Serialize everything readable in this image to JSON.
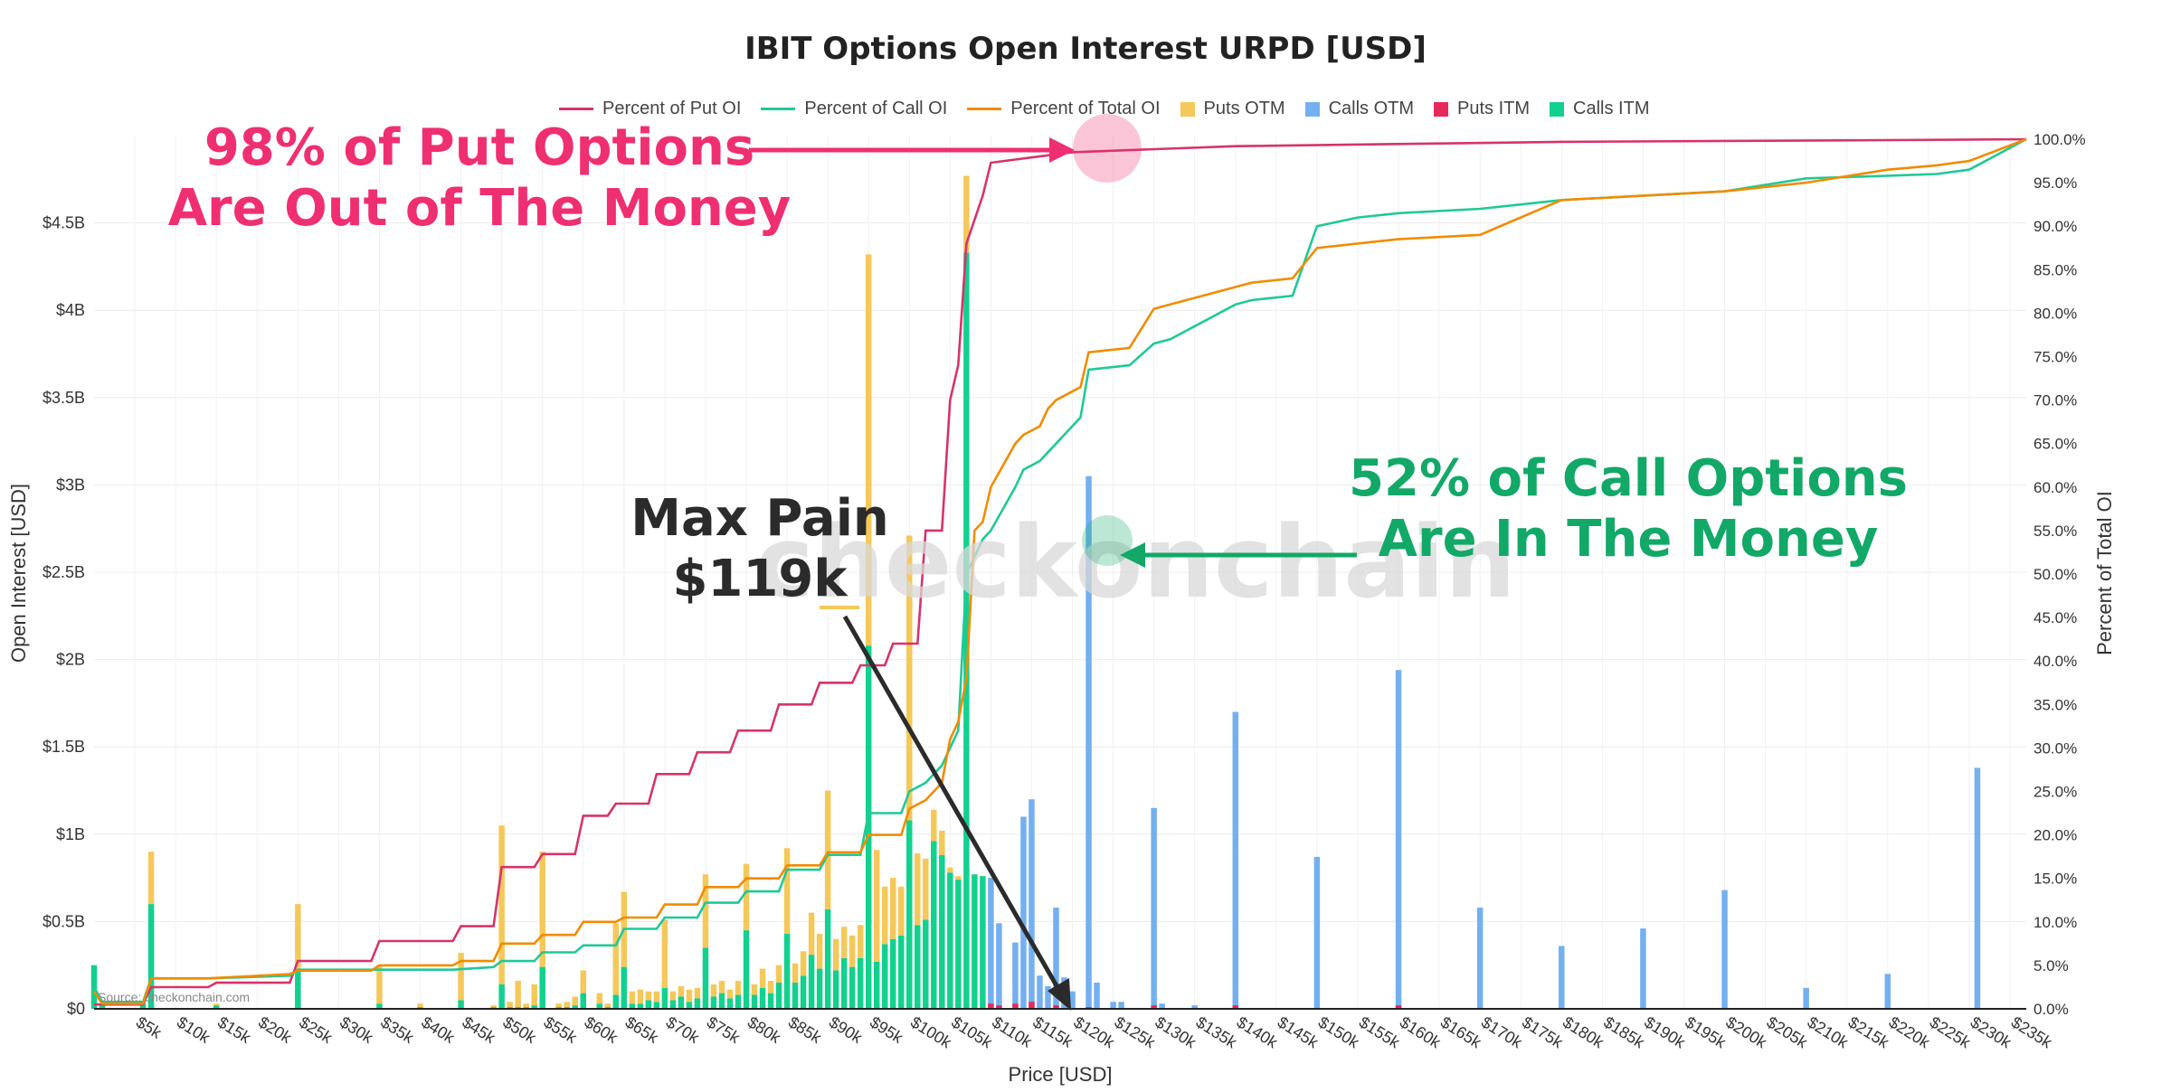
{
  "title": "IBIT Options Open Interest URPD [USD]",
  "legend": {
    "put_pct": "Percent of Put OI",
    "call_pct": "Percent of Call OI",
    "total_pct": "Percent of Total OI",
    "puts_otm": "Puts OTM",
    "calls_otm": "Calls OTM",
    "puts_itm": "Puts ITM",
    "calls_itm": "Calls ITM"
  },
  "colors": {
    "put_pct": "#d6336c",
    "call_pct": "#20c997",
    "total_pct": "#f08c00",
    "puts_otm": "#f5c85a",
    "calls_otm": "#74b0f0",
    "puts_itm": "#e8295c",
    "calls_itm": "#12d18e",
    "put_annotation": "#ef2f72",
    "call_annotation": "#12a868",
    "maxpain_annotation": "#2b2b2b"
  },
  "annotations": {
    "put_line1": "98% of Put Options",
    "put_line2": "Are Out of The Money",
    "call_line1": "52% of Call Options",
    "call_line2": "Are In The Money",
    "maxpain_line1": "Max Pain",
    "maxpain_line2": "$119k",
    "watermark": "checkonchain",
    "source": "Source: checkonchain.com"
  },
  "chart_data": {
    "type": "bar",
    "title": "IBIT Options Open Interest URPD [USD]",
    "xlabel": "Price [USD]",
    "ylabel": "Open Interest [USD]",
    "y2label": "Percent of Total OI",
    "xlim": [
      0,
      237
    ],
    "ylim": [
      0,
      5000000000
    ],
    "y2lim": [
      0,
      100
    ],
    "x_ticks": [
      "$5k",
      "$10k",
      "$15k",
      "$20k",
      "$25k",
      "$30k",
      "$35k",
      "$40k",
      "$45k",
      "$50k",
      "$55k",
      "$60k",
      "$65k",
      "$70k",
      "$75k",
      "$80k",
      "$85k",
      "$90k",
      "$95k",
      "$100k",
      "$105k",
      "$110k",
      "$115k",
      "$120k",
      "$125k",
      "$130k",
      "$135k",
      "$140k",
      "$145k",
      "$150k",
      "$155k",
      "$160k",
      "$165k",
      "$170k",
      "$175k",
      "$180k",
      "$185k",
      "$190k",
      "$195k",
      "$200k",
      "$205k",
      "$210k",
      "$215k",
      "$220k",
      "$225k",
      "$230k",
      "$235k"
    ],
    "x_tick_values": [
      5,
      10,
      15,
      20,
      25,
      30,
      35,
      40,
      45,
      50,
      55,
      60,
      65,
      70,
      75,
      80,
      85,
      90,
      95,
      100,
      105,
      110,
      115,
      120,
      125,
      130,
      135,
      140,
      145,
      150,
      155,
      160,
      165,
      170,
      175,
      180,
      185,
      190,
      195,
      200,
      205,
      210,
      215,
      220,
      225,
      230,
      235
    ],
    "y_ticks": [
      "$0",
      "$0.5B",
      "$1B",
      "$1.5B",
      "$2B",
      "$2.5B",
      "$3B",
      "$3.5B",
      "$4B",
      "$4.5B"
    ],
    "y_tick_values": [
      0,
      0.5,
      1,
      1.5,
      2,
      2.5,
      3,
      3.5,
      4,
      4.5
    ],
    "y2_ticks": [
      "0.0%",
      "5.0%",
      "10.0%",
      "15.0%",
      "20.0%",
      "25.0%",
      "30.0%",
      "35.0%",
      "40.0%",
      "45.0%",
      "50.0%",
      "55.0%",
      "60.0%",
      "65.0%",
      "70.0%",
      "75.0%",
      "80.0%",
      "85.0%",
      "90.0%",
      "95.0%",
      "100.0%"
    ],
    "y2_tick_values": [
      0,
      5,
      10,
      15,
      20,
      25,
      30,
      35,
      40,
      45,
      50,
      55,
      60,
      65,
      70,
      75,
      80,
      85,
      90,
      95,
      100
    ],
    "bars_unit": "USD billions",
    "bars": [
      {
        "strike": 0,
        "calls_itm": 0.25,
        "puts_otm": 0
      },
      {
        "strike": 1,
        "calls_itm": 0.02,
        "puts_otm": 0.01
      },
      {
        "strike": 6,
        "calls_itm": 0.03,
        "puts_otm": 0.01
      },
      {
        "strike": 7,
        "calls_itm": 0.6,
        "puts_otm": 0.3
      },
      {
        "strike": 15,
        "calls_itm": 0.02,
        "puts_otm": 0.01
      },
      {
        "strike": 25,
        "calls_itm": 0.22,
        "puts_otm": 0.38
      },
      {
        "strike": 35,
        "calls_itm": 0.03,
        "puts_otm": 0.22
      },
      {
        "strike": 40,
        "calls_itm": 0.01,
        "puts_otm": 0.02
      },
      {
        "strike": 45,
        "calls_itm": 0.05,
        "puts_otm": 0.27
      },
      {
        "strike": 49,
        "calls_itm": 0.01,
        "puts_otm": 0.01
      },
      {
        "strike": 50,
        "calls_itm": 0.14,
        "puts_otm": 0.91
      },
      {
        "strike": 51,
        "calls_itm": 0.01,
        "puts_otm": 0.03
      },
      {
        "strike": 52,
        "calls_itm": 0.01,
        "puts_otm": 0.15
      },
      {
        "strike": 53,
        "calls_itm": 0.01,
        "puts_otm": 0.02
      },
      {
        "strike": 54,
        "calls_itm": 0.02,
        "puts_otm": 0.12
      },
      {
        "strike": 55,
        "calls_itm": 0.24,
        "puts_otm": 0.66
      },
      {
        "strike": 57,
        "calls_itm": 0.01,
        "puts_otm": 0.02
      },
      {
        "strike": 58,
        "calls_itm": 0.01,
        "puts_otm": 0.03
      },
      {
        "strike": 59,
        "calls_itm": 0.02,
        "puts_otm": 0.05
      },
      {
        "strike": 60,
        "calls_itm": 0.09,
        "puts_otm": 0.13
      },
      {
        "strike": 62,
        "calls_itm": 0.03,
        "puts_otm": 0.06
      },
      {
        "strike": 63,
        "calls_itm": 0.01,
        "puts_otm": 0.02
      },
      {
        "strike": 64,
        "calls_itm": 0.08,
        "puts_otm": 0.41
      },
      {
        "strike": 65,
        "calls_itm": 0.24,
        "puts_otm": 0.43
      },
      {
        "strike": 66,
        "calls_itm": 0.03,
        "puts_otm": 0.07
      },
      {
        "strike": 67,
        "calls_itm": 0.03,
        "puts_otm": 0.08
      },
      {
        "strike": 68,
        "calls_itm": 0.05,
        "puts_otm": 0.05
      },
      {
        "strike": 69,
        "calls_itm": 0.04,
        "puts_otm": 0.06
      },
      {
        "strike": 70,
        "calls_itm": 0.12,
        "puts_otm": 0.39
      },
      {
        "strike": 71,
        "calls_itm": 0.05,
        "puts_otm": 0.05
      },
      {
        "strike": 72,
        "calls_itm": 0.07,
        "puts_otm": 0.06
      },
      {
        "strike": 73,
        "calls_itm": 0.04,
        "puts_otm": 0.07
      },
      {
        "strike": 74,
        "calls_itm": 0.06,
        "puts_otm": 0.06
      },
      {
        "strike": 75,
        "calls_itm": 0.35,
        "puts_otm": 0.42
      },
      {
        "strike": 76,
        "calls_itm": 0.07,
        "puts_otm": 0.07
      },
      {
        "strike": 77,
        "calls_itm": 0.09,
        "puts_otm": 0.07
      },
      {
        "strike": 78,
        "calls_itm": 0.06,
        "puts_otm": 0.05
      },
      {
        "strike": 79,
        "calls_itm": 0.08,
        "puts_otm": 0.08
      },
      {
        "strike": 80,
        "calls_itm": 0.45,
        "puts_otm": 0.38
      },
      {
        "strike": 81,
        "calls_itm": 0.08,
        "puts_otm": 0.06
      },
      {
        "strike": 82,
        "calls_itm": 0.12,
        "puts_otm": 0.11
      },
      {
        "strike": 83,
        "calls_itm": 0.09,
        "puts_otm": 0.07
      },
      {
        "strike": 84,
        "calls_itm": 0.15,
        "puts_otm": 0.1
      },
      {
        "strike": 85,
        "calls_itm": 0.43,
        "puts_otm": 0.49
      },
      {
        "strike": 86,
        "calls_itm": 0.15,
        "puts_otm": 0.11
      },
      {
        "strike": 87,
        "calls_itm": 0.19,
        "puts_otm": 0.14
      },
      {
        "strike": 88,
        "calls_itm": 0.31,
        "puts_otm": 0.24
      },
      {
        "strike": 89,
        "calls_itm": 0.23,
        "puts_otm": 0.2
      },
      {
        "strike": 90,
        "calls_itm": 0.57,
        "puts_otm": 0.68
      },
      {
        "strike": 91,
        "calls_itm": 0.22,
        "puts_otm": 0.18
      },
      {
        "strike": 92,
        "calls_itm": 0.29,
        "puts_otm": 0.18
      },
      {
        "strike": 93,
        "calls_itm": 0.24,
        "puts_otm": 0.18
      },
      {
        "strike": 94,
        "calls_itm": 0.29,
        "puts_otm": 0.19
      },
      {
        "strike": 95,
        "calls_itm": 2.08,
        "puts_otm": 2.24
      },
      {
        "strike": 96,
        "calls_itm": 0.27,
        "puts_otm": 0.64
      },
      {
        "strike": 97,
        "calls_itm": 0.37,
        "puts_otm": 0.33
      },
      {
        "strike": 98,
        "calls_itm": 0.4,
        "puts_otm": 0.35
      },
      {
        "strike": 99,
        "calls_itm": 0.42,
        "puts_otm": 0.28
      },
      {
        "strike": 100,
        "calls_itm": 1.08,
        "puts_otm": 1.63
      },
      {
        "strike": 101,
        "calls_itm": 0.48,
        "puts_otm": 0.41
      },
      {
        "strike": 102,
        "calls_itm": 0.51,
        "puts_otm": 0.35
      },
      {
        "strike": 103,
        "calls_itm": 0.96,
        "puts_otm": 0.18
      },
      {
        "strike": 104,
        "calls_itm": 0.88,
        "puts_otm": 0.14
      },
      {
        "strike": 105,
        "calls_itm": 0.78,
        "puts_otm": 0.03
      },
      {
        "strike": 106,
        "calls_itm": 0.74,
        "puts_otm": 0.02
      },
      {
        "strike": 107,
        "calls_itm": 4.33,
        "puts_otm": 0.44
      },
      {
        "strike": 108,
        "calls_itm": 0.77,
        "puts_otm": 0
      },
      {
        "strike": 109,
        "calls_itm": 0.76,
        "puts_otm": 0
      }
    ],
    "calls_otm_bars": [
      {
        "strike": 110,
        "value": 0.75
      },
      {
        "strike": 111,
        "value": 0.49
      },
      {
        "strike": 113,
        "value": 0.38
      },
      {
        "strike": 114,
        "value": 1.1
      },
      {
        "strike": 115,
        "value": 1.2
      },
      {
        "strike": 116,
        "value": 0.19
      },
      {
        "strike": 117,
        "value": 0.13
      },
      {
        "strike": 118,
        "value": 0.58
      },
      {
        "strike": 119,
        "value": 0.18
      },
      {
        "strike": 120,
        "value": 0.1
      },
      {
        "strike": 122,
        "value": 3.05
      },
      {
        "strike": 123,
        "value": 0.15
      },
      {
        "strike": 125,
        "value": 0.04
      },
      {
        "strike": 126,
        "value": 0.04
      },
      {
        "strike": 130,
        "value": 1.15
      },
      {
        "strike": 131,
        "value": 0.03
      },
      {
        "strike": 135,
        "value": 0.02
      },
      {
        "strike": 140,
        "value": 1.7
      },
      {
        "strike": 150,
        "value": 0.87
      },
      {
        "strike": 160,
        "value": 1.94
      },
      {
        "strike": 170,
        "value": 0.58
      },
      {
        "strike": 180,
        "value": 0.36
      },
      {
        "strike": 190,
        "value": 0.46
      },
      {
        "strike": 200,
        "value": 0.68
      },
      {
        "strike": 210,
        "value": 0.12
      },
      {
        "strike": 220,
        "value": 0.2
      },
      {
        "strike": 231,
        "value": 1.38
      }
    ],
    "puts_itm_bars": [
      {
        "strike": 110,
        "value": 0.03
      },
      {
        "strike": 111,
        "value": 0.02
      },
      {
        "strike": 113,
        "value": 0.03
      },
      {
        "strike": 115,
        "value": 0.04
      },
      {
        "strike": 118,
        "value": 0.02
      },
      {
        "strike": 122,
        "value": 0.01
      },
      {
        "strike": 130,
        "value": 0.02
      },
      {
        "strike": 140,
        "value": 0.02
      },
      {
        "strike": 160,
        "value": 0.02
      }
    ],
    "series": [
      {
        "name": "Percent of Put OI",
        "x": [
          0,
          6,
          7,
          14,
          15,
          24,
          25,
          34,
          35,
          44,
          45,
          49,
          50,
          54,
          55,
          59,
          60,
          63,
          64,
          68,
          69,
          73,
          74,
          78,
          79,
          83,
          84,
          88,
          89,
          93,
          94,
          97,
          98,
          101,
          102,
          104,
          105,
          106,
          107,
          109,
          110,
          120,
          140,
          180,
          220,
          237
        ],
        "y": [
          0.5,
          0.5,
          2.5,
          2.5,
          3,
          3,
          5.5,
          5.5,
          7.8,
          7.8,
          9.5,
          9.5,
          16.3,
          16.3,
          17.8,
          17.8,
          22.2,
          22.2,
          23.6,
          23.6,
          27,
          27,
          29.5,
          29.5,
          32,
          32,
          35,
          35,
          37.5,
          37.5,
          39.5,
          39.5,
          42,
          42,
          55,
          55,
          70,
          74,
          88,
          93.5,
          97.3,
          98.5,
          99.2,
          99.7,
          99.9,
          100
        ]
      },
      {
        "name": "Percent of Call OI",
        "x": [
          0,
          1,
          6,
          7,
          14,
          24,
          25,
          44,
          49,
          50,
          54,
          55,
          59,
          60,
          64,
          65,
          69,
          70,
          74,
          75,
          79,
          80,
          84,
          85,
          89,
          90,
          94,
          95,
          99,
          100,
          102,
          104,
          105,
          106,
          107,
          108,
          109,
          110,
          113,
          114,
          116,
          117,
          118,
          121,
          122,
          127,
          130,
          132,
          140,
          142,
          147,
          150,
          155,
          160,
          170,
          180,
          200,
          210,
          220,
          226,
          230,
          237
        ],
        "y": [
          2.5,
          0.8,
          0.8,
          3.5,
          3.5,
          3.8,
          4.5,
          4.5,
          4.8,
          5.5,
          5.5,
          6.5,
          6.5,
          7.3,
          7.3,
          9.2,
          9.2,
          10.5,
          10.5,
          12.2,
          12.2,
          13.5,
          13.5,
          16,
          16,
          17.7,
          17.7,
          22.5,
          22.5,
          25,
          26,
          28,
          30,
          32,
          50,
          52,
          54,
          55,
          60,
          62,
          63,
          64,
          65,
          68,
          73.5,
          74,
          76.5,
          77,
          81,
          81.5,
          82,
          90,
          91,
          91.5,
          92,
          93,
          94,
          95.5,
          95.8,
          96,
          96.5,
          100
        ]
      },
      {
        "name": "Percent of Total OI",
        "x": [
          0,
          1,
          6,
          7,
          14,
          24,
          25,
          34,
          35,
          44,
          45,
          49,
          50,
          54,
          55,
          59,
          60,
          64,
          65,
          69,
          70,
          74,
          75,
          79,
          80,
          84,
          85,
          89,
          90,
          94,
          95,
          99,
          100,
          102,
          104,
          105,
          106,
          107,
          108,
          109,
          110,
          113,
          114,
          116,
          117,
          118,
          121,
          122,
          127,
          130,
          132,
          140,
          142,
          147,
          150,
          155,
          160,
          170,
          180,
          200,
          210,
          220,
          226,
          230,
          237
        ],
        "y": [
          2,
          0.6,
          0.6,
          3.5,
          3.5,
          4,
          4.4,
          4.4,
          5.0,
          5.0,
          5.5,
          5.5,
          7.5,
          7.5,
          8.5,
          8.5,
          10,
          10,
          10.5,
          10.5,
          12,
          12,
          14,
          14,
          15,
          15,
          16.5,
          16.5,
          18,
          18,
          20,
          20,
          23,
          24,
          26,
          31,
          33,
          38,
          55,
          56,
          60,
          65,
          66,
          67,
          69,
          70,
          71.5,
          75.5,
          76,
          80.5,
          81,
          83,
          83.5,
          84,
          87.5,
          88,
          88.5,
          89,
          93,
          94,
          95,
          96.5,
          97,
          97.5,
          100
        ]
      }
    ],
    "legend_position": "top"
  }
}
